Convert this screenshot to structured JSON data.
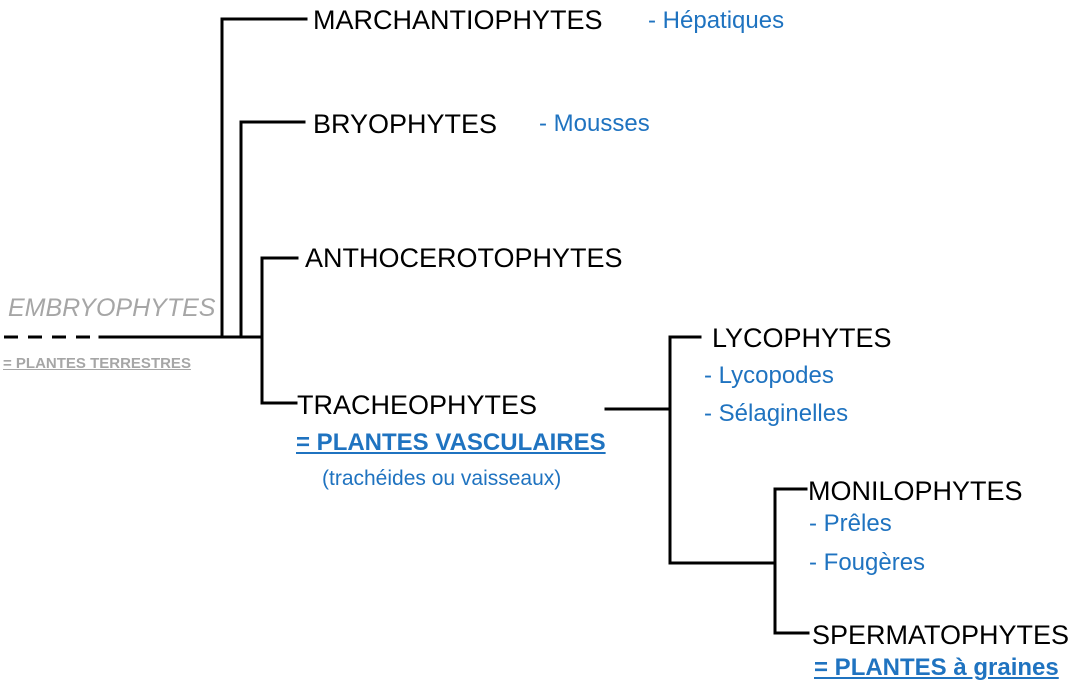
{
  "colors": {
    "line": "#000000",
    "accent": "#1f73c0",
    "muted": "#a6a6a6",
    "text": "#000000"
  },
  "root": {
    "name": "EMBRYOPHYTES",
    "note": "= PLANTES TERRESTRES"
  },
  "marchantiophytes": {
    "name": "MARCHANTIOPHYTES",
    "common": "- Hépatiques"
  },
  "bryophytes": {
    "name": "BRYOPHYTES",
    "common": "- Mousses"
  },
  "anthocerotophytes": {
    "name": "ANTHOCEROTOPHYTES"
  },
  "tracheophytes": {
    "name": "TRACHEOPHYTES",
    "note": "= PLANTES VASCULAIRES",
    "detail": "(trachéides ou vaisseaux)"
  },
  "lycophytes": {
    "name": "LYCOPHYTES",
    "members": [
      "- Lycopodes",
      "- Sélaginelles"
    ]
  },
  "monilophytes": {
    "name": "MONILOPHYTES",
    "members": [
      "- Prêles",
      "- Fougères"
    ]
  },
  "spermatophytes": {
    "name": "SPERMATOPHYTES",
    "note": "= PLANTES à graines"
  }
}
